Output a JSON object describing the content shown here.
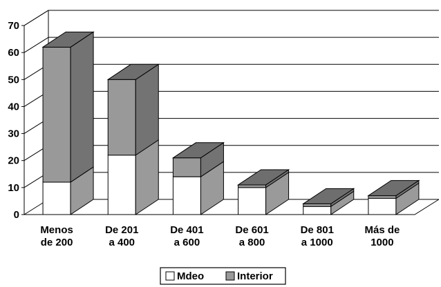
{
  "chart_data": {
    "type": "bar",
    "stacked": true,
    "three_d": true,
    "categories": [
      [
        "Menos",
        "de 200"
      ],
      [
        "De 201",
        "a 400"
      ],
      [
        "De 401",
        "a 600"
      ],
      [
        "De 601",
        "a 800"
      ],
      [
        "De 801",
        "a 1000"
      ],
      [
        "Más de",
        "1000"
      ]
    ],
    "series": [
      {
        "name": "Mdeo",
        "values": [
          12,
          22,
          14,
          10,
          3,
          6
        ],
        "color": "#ffffff"
      },
      {
        "name": "Interior",
        "values": [
          50,
          28,
          7,
          1,
          1,
          1
        ],
        "color": "#999999"
      }
    ],
    "ylim": [
      0,
      70
    ],
    "yticks": [
      0,
      10,
      20,
      30,
      40,
      50,
      60,
      70
    ],
    "grid": true,
    "legend_position": "bottom"
  }
}
